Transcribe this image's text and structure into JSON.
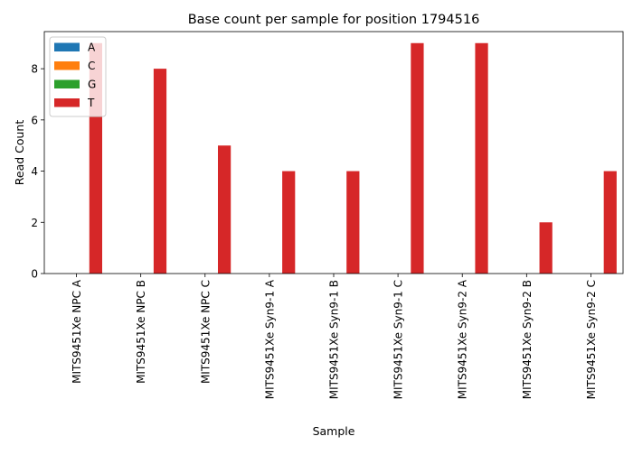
{
  "chart_data": {
    "type": "bar",
    "title": "Base count per sample for position 1794516",
    "xlabel": "Sample",
    "ylabel": "Read Count",
    "ylim": [
      0,
      9.45
    ],
    "yticks": [
      0,
      2,
      4,
      6,
      8
    ],
    "ytick_labels": [
      "0",
      "2",
      "4",
      "6",
      "8"
    ],
    "grid": false,
    "legend_position": "top-left",
    "categories": [
      "MITS9451Xe NPC A",
      "MITS9451Xe NPC B",
      "MITS9451Xe NPC C",
      "MITS9451Xe Syn9-1 A",
      "MITS9451Xe Syn9-1 B",
      "MITS9451Xe Syn9-1 C",
      "MITS9451Xe Syn9-2 A",
      "MITS9451Xe Syn9-2 B",
      "MITS9451Xe Syn9-2 C"
    ],
    "series": [
      {
        "name": "A",
        "color": "#1f77b4",
        "values": [
          0,
          0,
          0,
          0,
          0,
          0,
          0,
          0,
          0
        ]
      },
      {
        "name": "C",
        "color": "#ff7f0e",
        "values": [
          0,
          0,
          0,
          0,
          0,
          0,
          0,
          0,
          0
        ]
      },
      {
        "name": "G",
        "color": "#2ca02c",
        "values": [
          0,
          0,
          0,
          0,
          0,
          0,
          0,
          0,
          0
        ]
      },
      {
        "name": "T",
        "color": "#d62728",
        "values": [
          9,
          8,
          5,
          4,
          4,
          9,
          9,
          2,
          4
        ]
      }
    ]
  }
}
